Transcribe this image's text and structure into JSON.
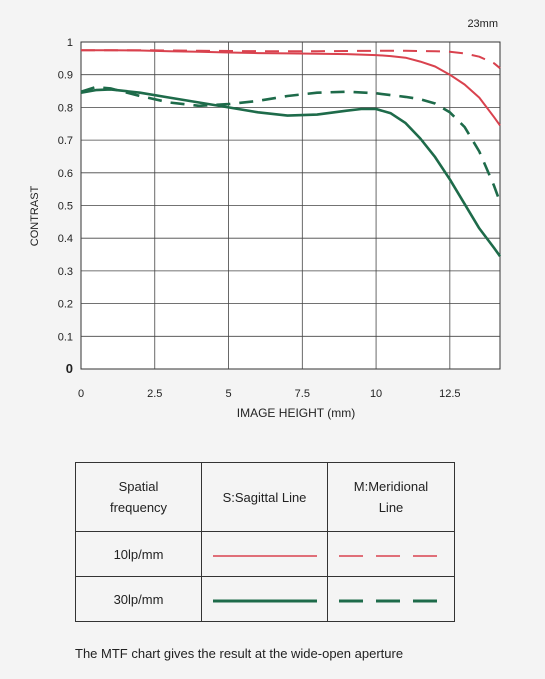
{
  "chart_data": {
    "type": "line",
    "title": "23mm",
    "xlabel": "IMAGE HEIGHT (mm)",
    "ylabel": "CONTRAST",
    "xlim": [
      0,
      14.2
    ],
    "ylim": [
      0,
      1
    ],
    "xticks": [
      "0",
      "2.5",
      "5",
      "7.5",
      "10",
      "12.5"
    ],
    "yticks": [
      "0",
      "0.1",
      "0.2",
      "0.3",
      "0.4",
      "0.5",
      "0.6",
      "0.7",
      "0.8",
      "0.9",
      "1"
    ],
    "grid": true,
    "series": [
      {
        "name": "10lp/mm S:Sagittal Line",
        "color": "#d9424e",
        "style": "solid",
        "x": [
          0,
          1,
          2,
          3,
          4,
          5,
          6,
          7,
          8,
          9,
          10,
          10.5,
          11,
          11.5,
          12,
          12.5,
          13,
          13.5,
          14,
          14.2
        ],
        "y": [
          0.975,
          0.975,
          0.974,
          0.972,
          0.97,
          0.968,
          0.966,
          0.965,
          0.964,
          0.963,
          0.96,
          0.957,
          0.952,
          0.94,
          0.925,
          0.9,
          0.87,
          0.83,
          0.77,
          0.745
        ]
      },
      {
        "name": "10lp/mm M:Meridional Line",
        "color": "#d9424e",
        "style": "dashed",
        "x": [
          0,
          2,
          4,
          6,
          8,
          10,
          11,
          12,
          12.5,
          13,
          13.5,
          14,
          14.2
        ],
        "y": [
          0.975,
          0.975,
          0.973,
          0.972,
          0.972,
          0.973,
          0.973,
          0.972,
          0.97,
          0.965,
          0.955,
          0.935,
          0.92
        ]
      },
      {
        "name": "30lp/mm S:Sagittal Line",
        "color": "#1e6b4a",
        "style": "solid",
        "x": [
          0,
          0.5,
          1,
          2,
          3,
          4,
          5,
          6,
          7,
          8,
          9,
          9.5,
          10,
          10.5,
          11,
          11.5,
          12,
          12.5,
          13,
          13.5,
          14,
          14.2
        ],
        "y": [
          0.845,
          0.853,
          0.855,
          0.845,
          0.83,
          0.815,
          0.8,
          0.785,
          0.775,
          0.778,
          0.79,
          0.795,
          0.795,
          0.782,
          0.752,
          0.705,
          0.648,
          0.58,
          0.505,
          0.43,
          0.37,
          0.345
        ]
      },
      {
        "name": "30lp/mm M:Meridional Line",
        "color": "#1e6b4a",
        "style": "dashed",
        "x": [
          0,
          0.5,
          1,
          2,
          3,
          4,
          5,
          6,
          7,
          8,
          9,
          10,
          11,
          11.5,
          12,
          12.5,
          13,
          13.5,
          14,
          14.2
        ],
        "y": [
          0.848,
          0.862,
          0.858,
          0.835,
          0.815,
          0.805,
          0.81,
          0.82,
          0.835,
          0.845,
          0.848,
          0.843,
          0.832,
          0.825,
          0.812,
          0.785,
          0.74,
          0.665,
          0.56,
          0.51
        ]
      }
    ]
  },
  "legend_table": {
    "header_frequency": "Spatial\nfrequency",
    "header_sagittal": "S:Sagittal Line",
    "header_meridional": "M:Meridional\nLine",
    "row_10": "10lp/mm",
    "row_30": "30lp/mm"
  },
  "caption": "The MTF chart gives the result at the wide-open aperture"
}
